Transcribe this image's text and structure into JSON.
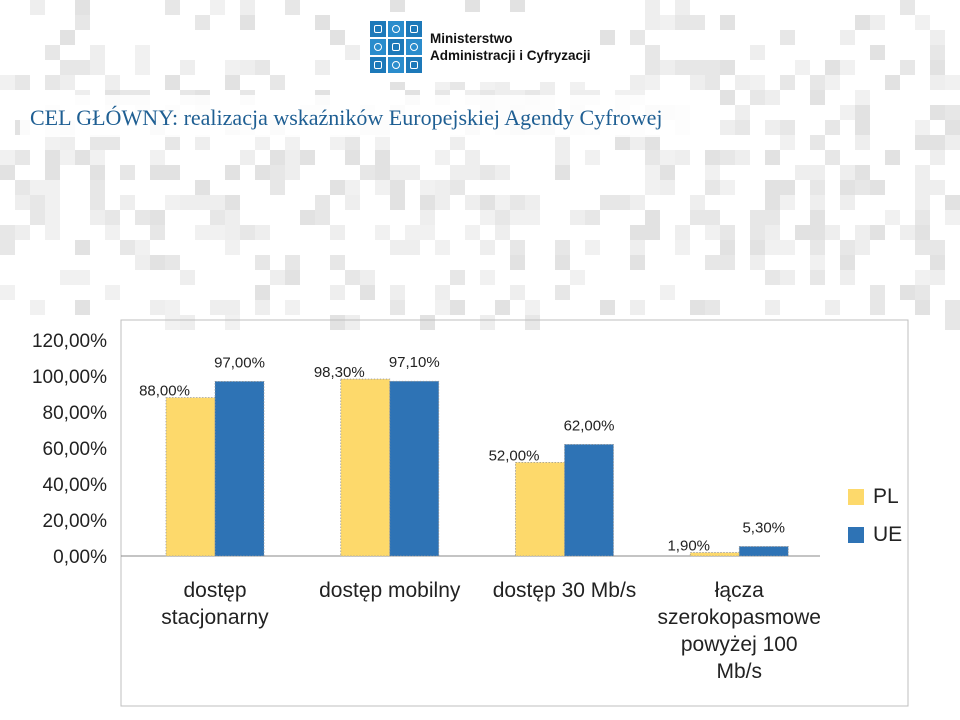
{
  "header": {
    "logo_line1": "Ministerstwo",
    "logo_line2": "Administracji i Cyfryzacji"
  },
  "slide": {
    "title": "CEL GŁÓWNY: realizacja wskaźników Europejskiej Agendy Cyfrowej"
  },
  "colors": {
    "pl": "#fdd96b",
    "ue": "#2e73b5",
    "title": "#1f5f93",
    "logo": "#1d79b9"
  },
  "chart_data": {
    "type": "bar",
    "title": "",
    "xlabel": "",
    "ylabel": "",
    "ylim": [
      0,
      120
    ],
    "yticks": [
      "120,00%",
      "100,00%",
      "80,00%",
      "60,00%",
      "40,00%",
      "20,00%",
      "0,00%"
    ],
    "ytick_values": [
      120,
      100,
      80,
      60,
      40,
      20,
      0
    ],
    "categories": [
      [
        "dostęp",
        "stacjonarny"
      ],
      [
        "dostęp mobilny"
      ],
      [
        "dostęp 30 Mb/s"
      ],
      [
        "łącza",
        "szerokopasmowe",
        "powyżej 100",
        "Mb/s"
      ]
    ],
    "series": [
      {
        "name": "PL",
        "values": [
          88.0,
          98.3,
          52.0,
          1.9
        ],
        "labels": [
          "88,00%",
          "98,30%",
          "52,00%",
          "1,90%"
        ]
      },
      {
        "name": "UE",
        "values": [
          97.0,
          97.1,
          62.0,
          5.3
        ],
        "labels": [
          "97,00%",
          "97,10%",
          "62,00%",
          "5,30%"
        ]
      }
    ],
    "legend_position": "right",
    "grid": false
  }
}
